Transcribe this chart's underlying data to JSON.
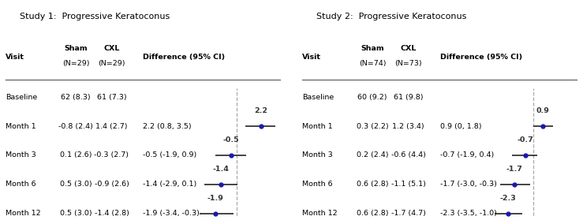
{
  "study1": {
    "title": "Study 1:  Progressive Keratoconus",
    "col_sham": "Sham\n(N=29)",
    "col_cxl": "CXL\n(N=29)",
    "col_diff": "Difference (95% CI)",
    "rows": [
      {
        "visit": "Baseline",
        "sham": "62 (8.3)",
        "cxl": "61 (7.3)",
        "diff": "",
        "est": null,
        "lo": null,
        "hi": null,
        "label": ""
      },
      {
        "visit": "Month 1",
        "sham": "-0.8 (2.4)",
        "cxl": "1.4 (2.7)",
        "diff": "2.2 (0.8, 3.5)",
        "est": 2.2,
        "lo": 0.8,
        "hi": 3.5,
        "label": "2.2"
      },
      {
        "visit": "Month 3",
        "sham": "0.1 (2.6)",
        "cxl": "-0.3 (2.7)",
        "diff": "-0.5 (-1.9, 0.9)",
        "est": -0.5,
        "lo": -1.9,
        "hi": 0.9,
        "label": "-0.5"
      },
      {
        "visit": "Month 6",
        "sham": "0.5 (3.0)",
        "cxl": "-0.9 (2.6)",
        "diff": "-1.4 (-2.9, 0.1)",
        "est": -1.4,
        "lo": -2.9,
        "hi": 0.1,
        "label": "-1.4"
      },
      {
        "visit": "Month 12",
        "sham": "0.5 (3.0)",
        "cxl": "-1.4 (2.8)",
        "diff": "-1.9 (-3.4, -0.3)",
        "est": -1.9,
        "lo": -3.4,
        "hi": -0.3,
        "label": "-1.9"
      }
    ]
  },
  "study2": {
    "title": "Study 2:  Progressive Keratoconus",
    "col_sham": "Sham\n(N=74)",
    "col_cxl": "CXL\n(N=73)",
    "col_diff": "Difference (95% CI)",
    "rows": [
      {
        "visit": "Baseline",
        "sham": "60 (9.2)",
        "cxl": "61 (9.8)",
        "diff": "",
        "est": null,
        "lo": null,
        "hi": null,
        "label": ""
      },
      {
        "visit": "Month 1",
        "sham": "0.3 (2.2)",
        "cxl": "1.2 (3.4)",
        "diff": "0.9 (0, 1.8)",
        "est": 0.9,
        "lo": 0.0,
        "hi": 1.8,
        "label": "0.9"
      },
      {
        "visit": "Month 3",
        "sham": "0.2 (2.4)",
        "cxl": "-0.6 (4.4)",
        "diff": "-0.7 (-1.9, 0.4)",
        "est": -0.7,
        "lo": -1.9,
        "hi": 0.4,
        "label": "-0.7"
      },
      {
        "visit": "Month 6",
        "sham": "0.6 (2.8)",
        "cxl": "-1.1 (5.1)",
        "diff": "-1.7 (-3.0, -0.3)",
        "est": -1.7,
        "lo": -3.0,
        "hi": -0.3,
        "label": "-1.7"
      },
      {
        "visit": "Month 12",
        "sham": "0.6 (2.8)",
        "cxl": "-1.7 (4.7)",
        "diff": "-2.3 (-3.5, -1.0)",
        "est": -2.3,
        "lo": -3.5,
        "hi": -1.0,
        "label": "-2.3"
      }
    ]
  },
  "xlim": [
    -4,
    4
  ],
  "xticks": [
    -4,
    -2,
    0,
    2,
    4
  ],
  "dot_color": "#1a1aaa",
  "line_color": "#111111",
  "dash_color": "#aaaaaa",
  "label_color": "#333333",
  "bg_color": "#ffffff",
  "border_color": "#555555",
  "font_size": 6.8,
  "title_font_size": 8.0
}
